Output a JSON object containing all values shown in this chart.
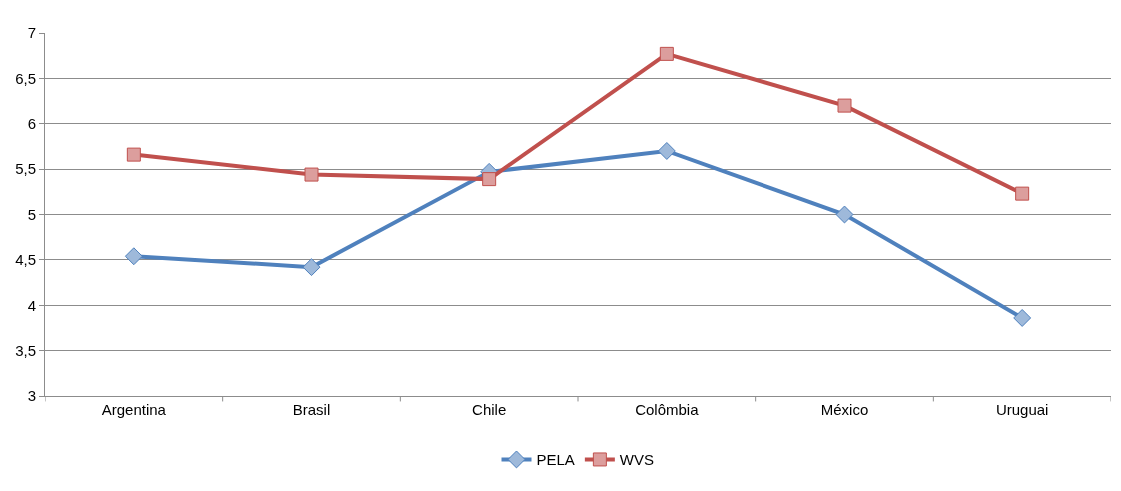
{
  "chart_data": {
    "type": "line",
    "categories": [
      "Argentina",
      "Brasil",
      "Chile",
      "Colômbia",
      "México",
      "Uruguai"
    ],
    "series": [
      {
        "name": "PELA",
        "color": "#4f81bd",
        "marker": "diamond",
        "values": [
          4.54,
          4.42,
          5.47,
          5.7,
          5.0,
          3.86
        ]
      },
      {
        "name": "WVS",
        "color": "#c0504d",
        "marker": "square",
        "values": [
          5.66,
          5.44,
          5.39,
          6.77,
          6.2,
          5.23
        ]
      }
    ],
    "ylim": [
      3,
      7
    ],
    "yticks": [
      3,
      {
        "value": 3.5,
        "label": "3,5"
      },
      4,
      {
        "value": 4.5,
        "label": "4,5"
      },
      5,
      {
        "value": 5.5,
        "label": "5,5"
      },
      6,
      {
        "value": 6.5,
        "label": "6,5"
      },
      7
    ],
    "grid": "y",
    "legend": "bottom",
    "line_style": "solid"
  }
}
